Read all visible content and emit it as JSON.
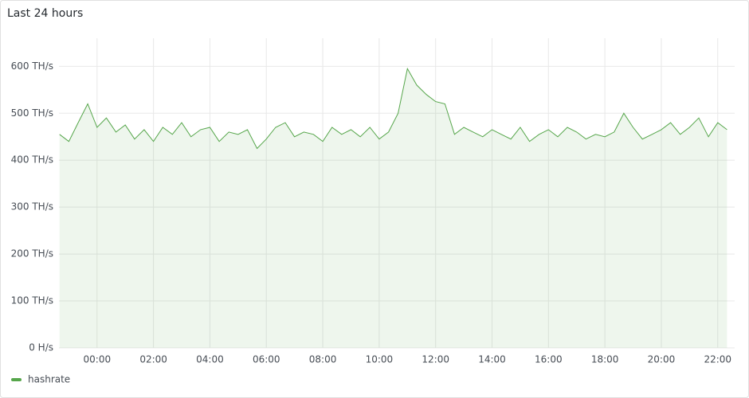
{
  "chart_data": {
    "type": "line",
    "title": "Last 24 hours",
    "x": [
      22.67,
      23,
      23.33,
      23.67,
      24,
      24.33,
      24.67,
      25,
      25.33,
      25.67,
      26,
      26.33,
      26.67,
      27,
      27.33,
      27.67,
      28,
      28.33,
      28.67,
      29,
      29.33,
      29.67,
      30,
      30.33,
      30.67,
      31,
      31.33,
      31.67,
      32,
      32.33,
      32.67,
      33,
      33.33,
      33.67,
      34,
      34.33,
      34.67,
      35,
      35.33,
      35.67,
      36,
      36.33,
      36.67,
      37,
      37.33,
      37.67,
      38,
      38.33,
      38.67,
      39,
      39.33,
      39.67,
      40,
      40.33,
      40.67,
      41,
      41.33,
      41.67,
      42,
      42.33,
      42.67,
      43,
      43.33,
      43.67,
      44,
      44.33,
      44.67,
      45,
      45.33,
      45.67,
      46,
      46.33
    ],
    "series": [
      {
        "name": "hashrate",
        "color": "#56a64b",
        "values": [
          455,
          440,
          480,
          520,
          470,
          490,
          460,
          475,
          445,
          465,
          440,
          470,
          455,
          480,
          450,
          465,
          470,
          440,
          460,
          455,
          465,
          425,
          445,
          470,
          480,
          450,
          460,
          455,
          440,
          470,
          455,
          465,
          450,
          470,
          445,
          460,
          500,
          595,
          560,
          540,
          525,
          520,
          455,
          470,
          460,
          450,
          465,
          455,
          445,
          470,
          440,
          455,
          465,
          450,
          470,
          460,
          445,
          455,
          450,
          460,
          500,
          470,
          445,
          455,
          465,
          480,
          455,
          470,
          490,
          450,
          480,
          465
        ]
      }
    ],
    "xlim": [
      22.65,
      46.6
    ],
    "xticks": [
      {
        "value": 24,
        "label": "00:00"
      },
      {
        "value": 26,
        "label": "02:00"
      },
      {
        "value": 28,
        "label": "04:00"
      },
      {
        "value": 30,
        "label": "06:00"
      },
      {
        "value": 32,
        "label": "08:00"
      },
      {
        "value": 34,
        "label": "10:00"
      },
      {
        "value": 36,
        "label": "12:00"
      },
      {
        "value": 38,
        "label": "14:00"
      },
      {
        "value": 40,
        "label": "16:00"
      },
      {
        "value": 42,
        "label": "18:00"
      },
      {
        "value": 44,
        "label": "20:00"
      },
      {
        "value": 46,
        "label": "22:00"
      }
    ],
    "ylim": [
      0,
      660
    ],
    "yticks": [
      {
        "value": 0,
        "label": "0 H/s"
      },
      {
        "value": 100,
        "label": "100 TH/s"
      },
      {
        "value": 200,
        "label": "200 TH/s"
      },
      {
        "value": 300,
        "label": "300 TH/s"
      },
      {
        "value": 400,
        "label": "400 TH/s"
      },
      {
        "value": 500,
        "label": "500 TH/s"
      },
      {
        "value": 600,
        "label": "600 TH/s"
      }
    ],
    "grid": true
  }
}
